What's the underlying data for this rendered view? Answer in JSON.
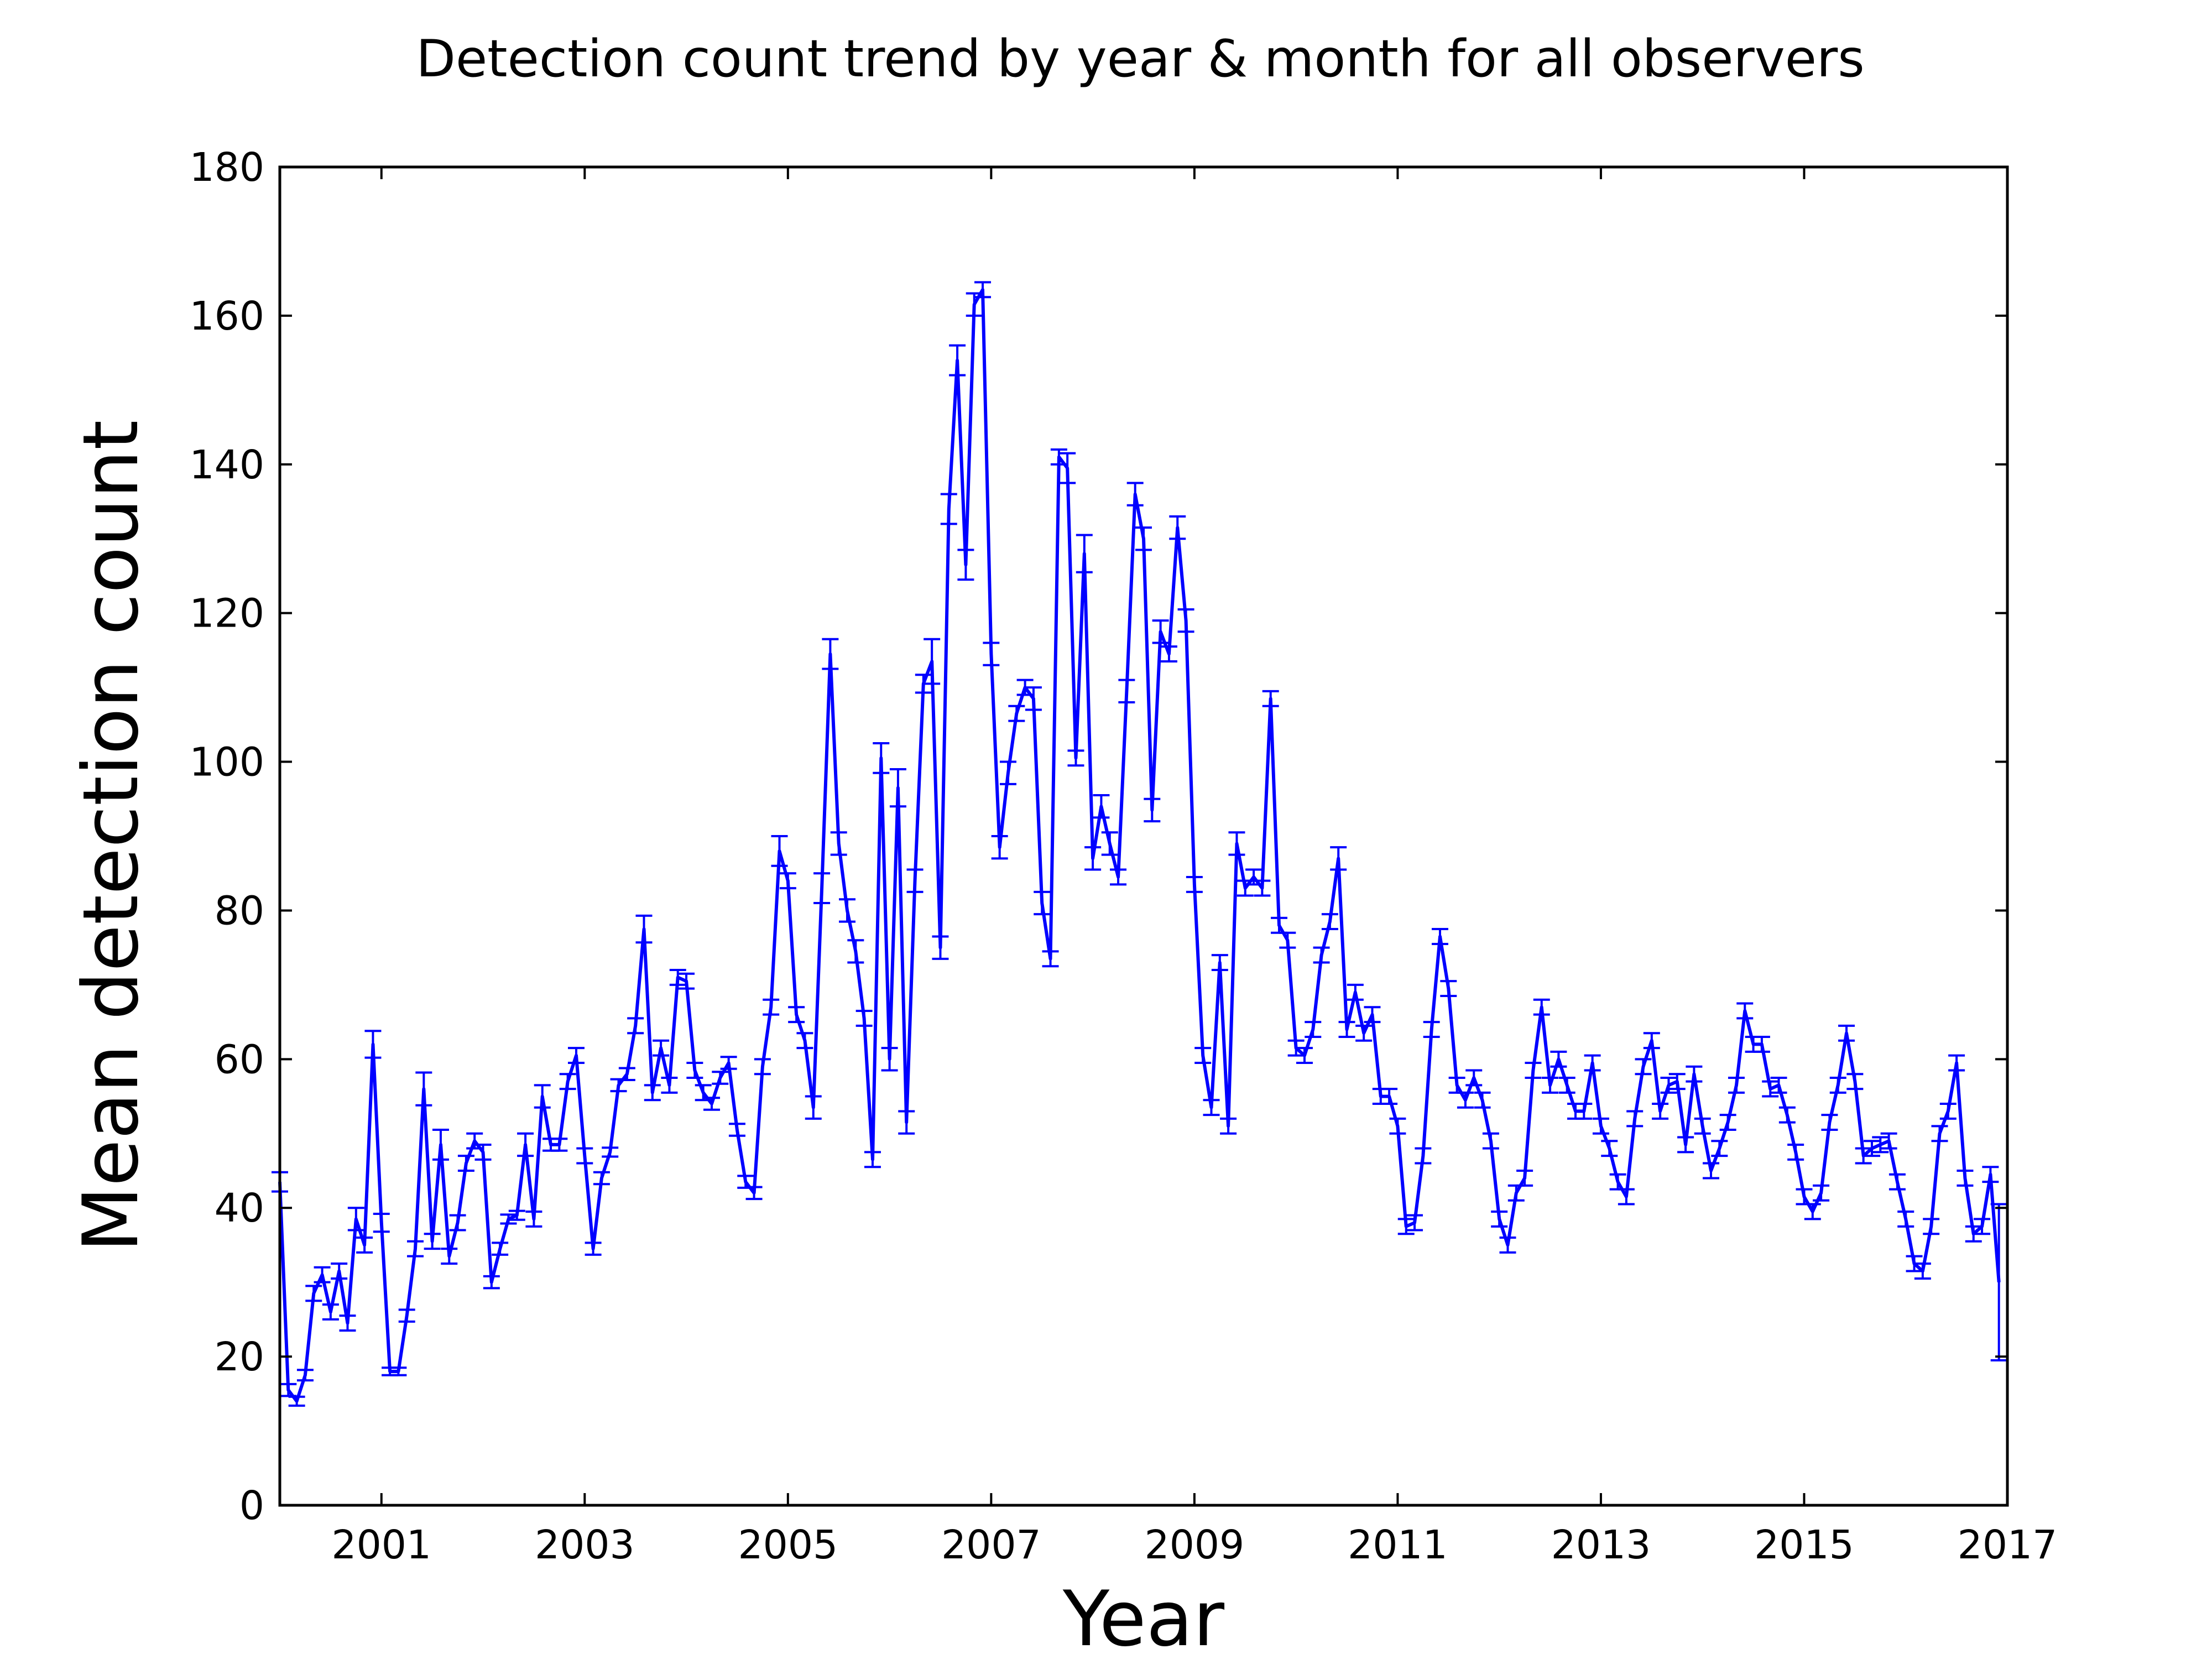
{
  "chart_data": {
    "type": "line",
    "title": "Detection count trend by year & month for all observers",
    "xlabel": "Year",
    "ylabel": "Mean detection count",
    "xlim": [
      "2000-01",
      "2017-01"
    ],
    "ylim": [
      0,
      180
    ],
    "x_ticks": [
      "2001",
      "2003",
      "2005",
      "2007",
      "2009",
      "2011",
      "2013",
      "2015",
      "2017"
    ],
    "y_ticks": [
      "0",
      "20",
      "40",
      "60",
      "80",
      "100",
      "120",
      "140",
      "160",
      "180"
    ],
    "grid": false,
    "legend": "none",
    "error_bars": true,
    "colors": {
      "line": "#0000ff",
      "axes": "#000000",
      "background": "#ffffff"
    },
    "series": [
      {
        "values": [
          [
            "2000-01",
            43.5,
            1.3
          ],
          [
            "2000-02",
            15.5,
            0.8
          ],
          [
            "2000-03",
            14.0,
            0.6
          ],
          [
            "2000-04",
            17.5,
            0.7
          ],
          [
            "2000-05",
            28.5,
            1.0
          ],
          [
            "2000-06",
            31.0,
            1.0
          ],
          [
            "2000-07",
            26.0,
            1.0
          ],
          [
            "2000-08",
            31.5,
            1.0
          ],
          [
            "2000-09",
            24.5,
            1.0
          ],
          [
            "2000-10",
            38.5,
            1.5
          ],
          [
            "2000-11",
            35.0,
            1.0
          ],
          [
            "2000-12",
            62.0,
            1.8
          ],
          [
            "2001-01",
            38.0,
            1.2
          ],
          [
            "2001-02",
            18.0,
            0.5
          ],
          [
            "2001-03",
            18.0,
            0.5
          ],
          [
            "2001-04",
            25.5,
            0.8
          ],
          [
            "2001-05",
            34.5,
            1.0
          ],
          [
            "2001-06",
            56.0,
            2.2
          ],
          [
            "2001-07",
            35.5,
            1.0
          ],
          [
            "2001-08",
            48.5,
            2.0
          ],
          [
            "2001-09",
            33.5,
            1.0
          ],
          [
            "2001-10",
            38.0,
            1.0
          ],
          [
            "2001-11",
            46.0,
            1.0
          ],
          [
            "2001-12",
            49.0,
            1.0
          ],
          [
            "2002-01",
            47.5,
            1.0
          ],
          [
            "2002-02",
            30.0,
            0.8
          ],
          [
            "2002-03",
            34.5,
            0.8
          ],
          [
            "2002-04",
            38.5,
            0.6
          ],
          [
            "2002-05",
            39.0,
            0.6
          ],
          [
            "2002-06",
            48.5,
            1.5
          ],
          [
            "2002-07",
            38.5,
            1.0
          ],
          [
            "2002-08",
            55.0,
            1.5
          ],
          [
            "2002-09",
            48.5,
            0.8
          ],
          [
            "2002-10",
            48.5,
            0.8
          ],
          [
            "2002-11",
            57.0,
            1.0
          ],
          [
            "2002-12",
            60.5,
            1.0
          ],
          [
            "2003-01",
            47.0,
            1.0
          ],
          [
            "2003-02",
            34.5,
            0.8
          ],
          [
            "2003-03",
            44.0,
            0.8
          ],
          [
            "2003-04",
            47.5,
            0.6
          ],
          [
            "2003-05",
            56.5,
            0.8
          ],
          [
            "2003-06",
            58.0,
            0.8
          ],
          [
            "2003-07",
            64.5,
            1.0
          ],
          [
            "2003-08",
            77.5,
            1.8
          ],
          [
            "2003-09",
            55.5,
            1.0
          ],
          [
            "2003-10",
            61.5,
            1.0
          ],
          [
            "2003-11",
            56.5,
            1.0
          ],
          [
            "2003-12",
            71.0,
            1.0
          ],
          [
            "2004-01",
            70.5,
            1.0
          ],
          [
            "2004-02",
            58.5,
            1.0
          ],
          [
            "2004-03",
            55.5,
            1.0
          ],
          [
            "2004-04",
            54.0,
            0.8
          ],
          [
            "2004-05",
            57.5,
            0.8
          ],
          [
            "2004-06",
            59.5,
            0.8
          ],
          [
            "2004-07",
            50.5,
            0.8
          ],
          [
            "2004-08",
            43.5,
            0.8
          ],
          [
            "2004-09",
            42.0,
            0.8
          ],
          [
            "2004-10",
            59.0,
            1.0
          ],
          [
            "2004-11",
            67.0,
            1.0
          ],
          [
            "2004-12",
            88.0,
            2.0
          ],
          [
            "2005-01",
            84.0,
            1.0
          ],
          [
            "2005-02",
            66.0,
            1.0
          ],
          [
            "2005-03",
            62.5,
            1.0
          ],
          [
            "2005-04",
            53.5,
            1.5
          ],
          [
            "2005-05",
            83.0,
            2.0
          ],
          [
            "2005-06",
            114.5,
            2.0
          ],
          [
            "2005-07",
            89.0,
            1.5
          ],
          [
            "2005-08",
            80.0,
            1.5
          ],
          [
            "2005-09",
            74.5,
            1.5
          ],
          [
            "2005-10",
            65.5,
            1.0
          ],
          [
            "2005-11",
            46.5,
            1.0
          ],
          [
            "2005-12",
            100.5,
            2.0
          ],
          [
            "2006-01",
            60.0,
            1.5
          ],
          [
            "2006-02",
            96.5,
            2.5
          ],
          [
            "2006-03",
            51.5,
            1.5
          ],
          [
            "2006-04",
            84.0,
            1.5
          ],
          [
            "2006-05",
            110.5,
            1.2
          ],
          [
            "2006-06",
            113.5,
            3.0
          ],
          [
            "2006-07",
            75.0,
            1.5
          ],
          [
            "2006-08",
            134.0,
            2.0
          ],
          [
            "2006-09",
            154.0,
            2.0
          ],
          [
            "2006-10",
            126.5,
            2.0
          ],
          [
            "2006-11",
            161.5,
            1.5
          ],
          [
            "2006-12",
            163.5,
            1.0
          ],
          [
            "2007-01",
            114.5,
            1.5
          ],
          [
            "2007-02",
            88.5,
            1.5
          ],
          [
            "2007-03",
            98.5,
            1.5
          ],
          [
            "2007-04",
            106.5,
            1.0
          ],
          [
            "2007-05",
            110.0,
            1.0
          ],
          [
            "2007-06",
            108.5,
            1.5
          ],
          [
            "2007-07",
            81.0,
            1.5
          ],
          [
            "2007-08",
            73.5,
            1.0
          ],
          [
            "2007-09",
            141.0,
            1.0
          ],
          [
            "2007-10",
            139.5,
            2.0
          ],
          [
            "2007-11",
            100.5,
            1.0
          ],
          [
            "2007-12",
            128.0,
            2.5
          ],
          [
            "2008-01",
            87.0,
            1.5
          ],
          [
            "2008-02",
            94.0,
            1.5
          ],
          [
            "2008-03",
            89.0,
            1.5
          ],
          [
            "2008-04",
            84.5,
            1.0
          ],
          [
            "2008-05",
            109.5,
            1.5
          ],
          [
            "2008-06",
            136.0,
            1.5
          ],
          [
            "2008-07",
            130.0,
            1.5
          ],
          [
            "2008-08",
            93.5,
            1.5
          ],
          [
            "2008-09",
            117.5,
            1.5
          ],
          [
            "2008-10",
            114.5,
            1.0
          ],
          [
            "2008-11",
            131.5,
            1.5
          ],
          [
            "2008-12",
            119.0,
            1.5
          ],
          [
            "2009-01",
            83.5,
            1.0
          ],
          [
            "2009-02",
            60.5,
            1.0
          ],
          [
            "2009-03",
            53.5,
            1.0
          ],
          [
            "2009-04",
            73.0,
            1.0
          ],
          [
            "2009-05",
            51.0,
            1.0
          ],
          [
            "2009-06",
            89.0,
            1.5
          ],
          [
            "2009-07",
            83.0,
            1.0
          ],
          [
            "2009-08",
            84.5,
            1.0
          ],
          [
            "2009-09",
            83.0,
            1.0
          ],
          [
            "2009-10",
            108.5,
            1.0
          ],
          [
            "2009-11",
            78.0,
            1.0
          ],
          [
            "2009-12",
            76.0,
            1.0
          ],
          [
            "2010-01",
            61.5,
            1.0
          ],
          [
            "2010-02",
            60.5,
            1.0
          ],
          [
            "2010-03",
            64.0,
            1.0
          ],
          [
            "2010-04",
            74.0,
            1.0
          ],
          [
            "2010-05",
            78.5,
            1.0
          ],
          [
            "2010-06",
            87.0,
            1.5
          ],
          [
            "2010-07",
            64.0,
            1.0
          ],
          [
            "2010-08",
            69.0,
            1.0
          ],
          [
            "2010-09",
            63.5,
            1.0
          ],
          [
            "2010-10",
            66.0,
            1.0
          ],
          [
            "2010-11",
            55.0,
            1.0
          ],
          [
            "2010-12",
            55.0,
            1.0
          ],
          [
            "2011-01",
            51.0,
            1.0
          ],
          [
            "2011-02",
            37.5,
            1.0
          ],
          [
            "2011-03",
            38.0,
            1.0
          ],
          [
            "2011-04",
            47.0,
            1.0
          ],
          [
            "2011-05",
            64.0,
            1.0
          ],
          [
            "2011-06",
            76.5,
            1.0
          ],
          [
            "2011-07",
            69.5,
            1.0
          ],
          [
            "2011-08",
            56.5,
            1.0
          ],
          [
            "2011-09",
            54.5,
            1.0
          ],
          [
            "2011-10",
            57.5,
            1.0
          ],
          [
            "2011-11",
            54.5,
            1.0
          ],
          [
            "2011-12",
            49.0,
            1.0
          ],
          [
            "2012-01",
            38.5,
            1.0
          ],
          [
            "2012-02",
            35.0,
            1.0
          ],
          [
            "2012-03",
            42.0,
            1.0
          ],
          [
            "2012-04",
            44.0,
            1.0
          ],
          [
            "2012-05",
            58.5,
            1.0
          ],
          [
            "2012-06",
            67.0,
            1.0
          ],
          [
            "2012-07",
            56.5,
            1.0
          ],
          [
            "2012-08",
            60.0,
            1.0
          ],
          [
            "2012-09",
            56.5,
            1.0
          ],
          [
            "2012-10",
            53.0,
            1.0
          ],
          [
            "2012-11",
            53.0,
            1.0
          ],
          [
            "2012-12",
            59.5,
            1.0
          ],
          [
            "2013-01",
            51.0,
            1.0
          ],
          [
            "2013-02",
            48.0,
            1.0
          ],
          [
            "2013-03",
            43.5,
            1.0
          ],
          [
            "2013-04",
            41.5,
            1.0
          ],
          [
            "2013-05",
            52.0,
            1.0
          ],
          [
            "2013-06",
            59.0,
            1.0
          ],
          [
            "2013-07",
            62.5,
            1.0
          ],
          [
            "2013-08",
            53.0,
            1.0
          ],
          [
            "2013-09",
            56.5,
            1.0
          ],
          [
            "2013-10",
            57.0,
            1.0
          ],
          [
            "2013-11",
            48.5,
            1.0
          ],
          [
            "2013-12",
            58.0,
            1.0
          ],
          [
            "2014-01",
            51.0,
            1.0
          ],
          [
            "2014-02",
            45.0,
            1.0
          ],
          [
            "2014-03",
            48.0,
            1.0
          ],
          [
            "2014-04",
            51.5,
            1.0
          ],
          [
            "2014-05",
            56.5,
            1.0
          ],
          [
            "2014-06",
            66.5,
            1.0
          ],
          [
            "2014-07",
            62.0,
            1.0
          ],
          [
            "2014-08",
            62.0,
            1.0
          ],
          [
            "2014-09",
            56.0,
            1.0
          ],
          [
            "2014-10",
            56.5,
            1.0
          ],
          [
            "2014-11",
            52.5,
            1.0
          ],
          [
            "2014-12",
            47.5,
            1.0
          ],
          [
            "2015-01",
            41.5,
            1.0
          ],
          [
            "2015-02",
            39.5,
            1.0
          ],
          [
            "2015-03",
            42.0,
            1.0
          ],
          [
            "2015-04",
            51.5,
            1.0
          ],
          [
            "2015-05",
            56.5,
            1.0
          ],
          [
            "2015-06",
            63.5,
            1.0
          ],
          [
            "2015-07",
            57.0,
            1.0
          ],
          [
            "2015-08",
            47.0,
            1.0
          ],
          [
            "2015-09",
            48.0,
            1.0
          ],
          [
            "2015-10",
            48.5,
            1.0
          ],
          [
            "2015-11",
            49.0,
            1.0
          ],
          [
            "2015-12",
            43.5,
            1.0
          ],
          [
            "2016-01",
            38.5,
            1.0
          ],
          [
            "2016-02",
            32.5,
            1.0
          ],
          [
            "2016-03",
            31.5,
            1.0
          ],
          [
            "2016-04",
            37.5,
            1.0
          ],
          [
            "2016-05",
            50.0,
            1.0
          ],
          [
            "2016-06",
            53.0,
            1.0
          ],
          [
            "2016-07",
            59.5,
            1.0
          ],
          [
            "2016-08",
            44.0,
            1.0
          ],
          [
            "2016-09",
            36.5,
            1.0
          ],
          [
            "2016-10",
            37.5,
            1.0
          ],
          [
            "2016-11",
            44.5,
            1.0
          ],
          [
            "2016-12",
            30.0,
            10.5
          ]
        ]
      }
    ]
  }
}
